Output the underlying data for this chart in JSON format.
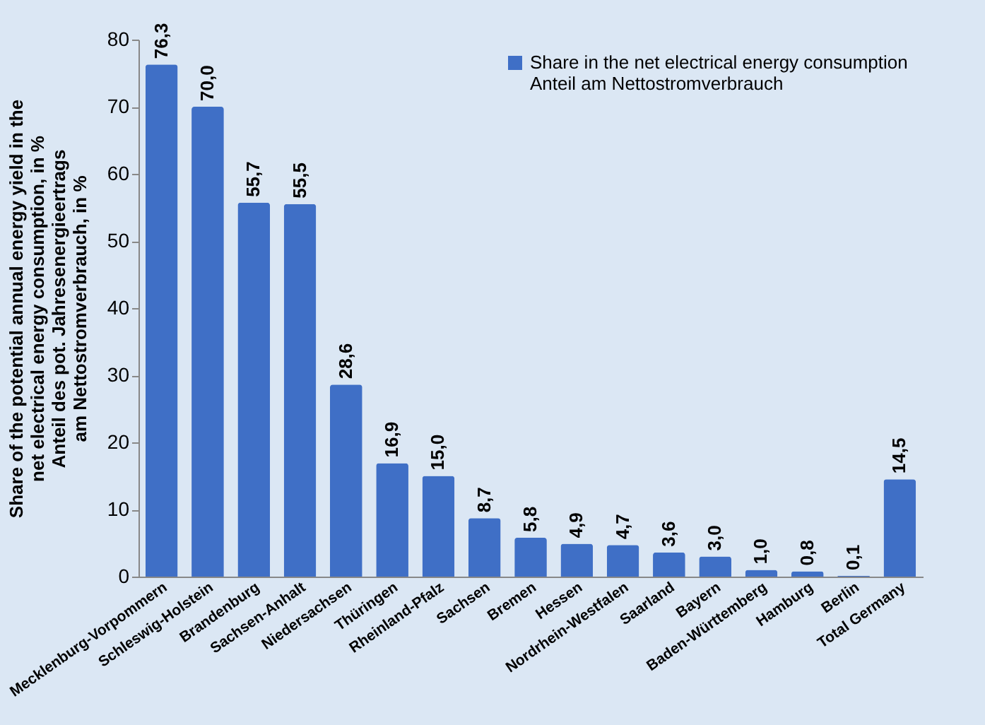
{
  "chart_data": {
    "type": "bar",
    "ylabel": "Share of the potential annual energy yield in the\nnet electrical energy consumption, in %\nAnteil des pot. Jahresenergieertrags\nam Nettostromverbrauch, in %",
    "categories": [
      "Mecklenburg-Vorpommern",
      "Schleswig-Holstein",
      "Brandenburg",
      "Sachsen-Anhalt",
      "Niedersachsen",
      "Thüringen",
      "Rheinland-Pfalz",
      "Sachsen",
      "Bremen",
      "Hessen",
      "Nordrhein-Westfalen",
      "Saarland",
      "Bayern",
      "Baden-Württemberg",
      "Hamburg",
      "Berlin",
      "Total Germany"
    ],
    "series": [
      {
        "name": "Share in the net electrical energy consumption\nAnteil am Nettostromverbrauch",
        "color": "#3f6fc6",
        "values": [
          76.3,
          70.0,
          55.7,
          55.5,
          28.6,
          16.9,
          15.0,
          8.7,
          5.8,
          4.9,
          4.7,
          3.6,
          3.0,
          1.0,
          0.8,
          0.1,
          14.5
        ],
        "value_labels": [
          "76,3",
          "70,0",
          "55,7",
          "55,5",
          "28,6",
          "16,9",
          "15,0",
          "8,7",
          "5,8",
          "4,9",
          "4,7",
          "3,6",
          "3,0",
          "1,0",
          "0,8",
          "0,1",
          "14,5"
        ]
      }
    ],
    "ylim": [
      0,
      80
    ],
    "yticks": [
      0,
      10,
      20,
      30,
      40,
      50,
      60,
      70,
      80
    ],
    "grid": false,
    "legend": "top right"
  }
}
